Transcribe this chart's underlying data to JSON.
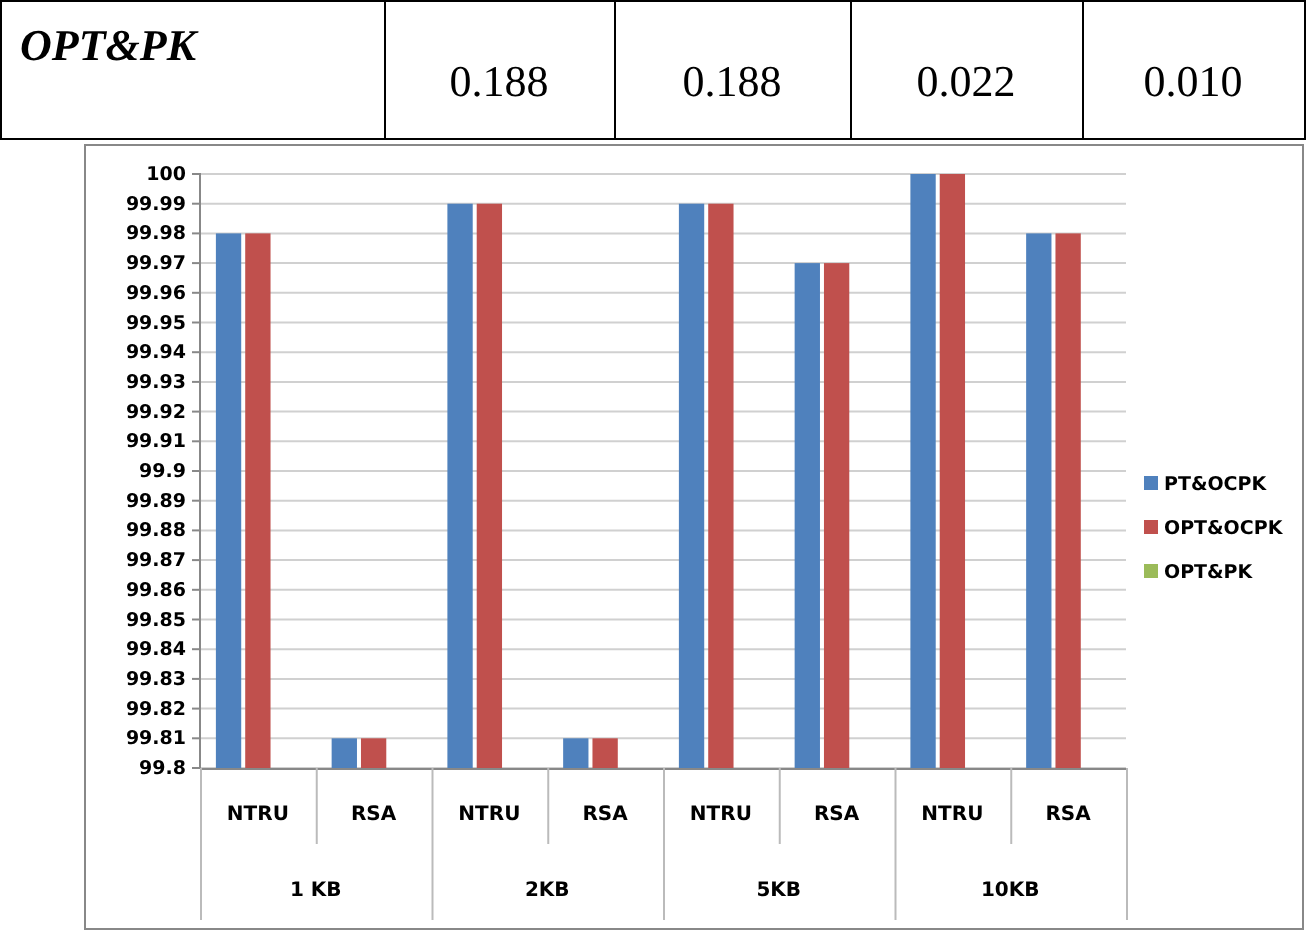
{
  "chart_data": [
    {
      "type": "other",
      "title": "OPT&PK",
      "annotations": [
        "0.188",
        "0.188",
        "0.022",
        "0.010"
      ]
    },
    {
      "type": "bar",
      "categories": [
        "NTRU",
        "RSA",
        "NTRU",
        "RSA",
        "NTRU",
        "RSA",
        "NTRU",
        "RSA"
      ],
      "series": [
        {
          "name": "PT&OCPK",
          "color": "#4f81bd",
          "values": [
            99.98,
            99.81,
            99.99,
            99.81,
            99.99,
            99.97,
            100,
            99.98
          ]
        },
        {
          "name": "OPT&OCPK",
          "color": "#c0504d",
          "values": [
            99.98,
            99.81,
            99.99,
            99.81,
            99.99,
            99.97,
            100,
            99.98
          ]
        },
        {
          "name": "OPT&PK",
          "color": "#9bbb59",
          "values": [
            null,
            null,
            null,
            null,
            null,
            null,
            null,
            null
          ]
        }
      ],
      "annotations": [
        "1 KB",
        "2KB",
        "5KB",
        "10KB"
      ],
      "ylim": [
        99.8,
        100
      ],
      "yticks": [
        99.8,
        99.81,
        99.82,
        99.83,
        99.84,
        99.85,
        99.86,
        99.87,
        99.88,
        99.89,
        99.9,
        99.91,
        99.92,
        99.93,
        99.94,
        99.95,
        99.96,
        99.97,
        99.98,
        99.99,
        100
      ],
      "grid": "y",
      "legend": "right"
    }
  ]
}
